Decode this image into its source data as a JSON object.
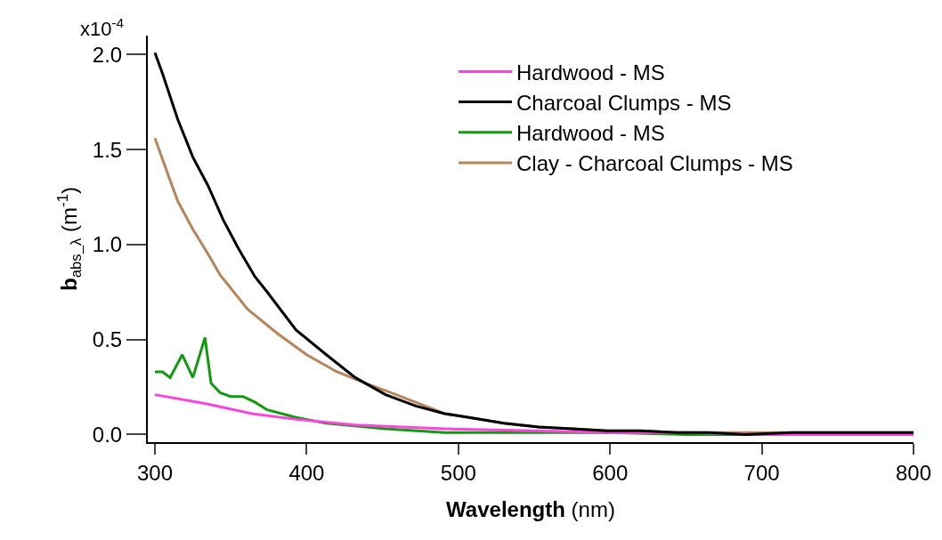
{
  "chart_data": {
    "type": "line",
    "xlabel": "Wavelength (nm)",
    "ylabel": "b$_{abs_λ}$ (m$^{-1}$)",
    "annotations": [
      "x10$^{-4}$"
    ],
    "xlim": [
      295.3,
      800
    ],
    "xticks": [
      300,
      400,
      500,
      600,
      700,
      800
    ],
    "ylim": [
      -0.04,
      2.1
    ],
    "yticks": [
      {
        "value": 0,
        "label": "0.0"
      },
      0.5,
      {
        "value": 1,
        "label": "1.0"
      },
      1.5,
      {
        "value": 2,
        "label": "2.0"
      }
    ],
    "grid": false,
    "legend": "top right",
    "marker": "none",
    "line_style": "solid",
    "series": [
      {
        "name": "Hardwood - MS",
        "color": "#ff44dd",
        "x": [
          300,
          335,
          364,
          393,
          432,
          491,
          550,
          600,
          650,
          700,
          750,
          800
        ],
        "values": [
          0.21,
          0.16,
          0.11,
          0.08,
          0.05,
          0.03,
          0.02,
          0.01,
          0.01,
          0.0,
          0.0,
          0.0
        ]
      },
      {
        "name": "Charcoal Clumps - MS",
        "color": "#000000",
        "x": [
          300,
          305,
          315,
          325,
          335,
          345,
          355,
          366,
          374,
          393,
          413,
          432,
          452,
          472,
          491,
          507,
          530,
          553,
          575,
          598,
          620,
          644,
          665,
          689,
          720,
          760,
          800
        ],
        "values": [
          2.01,
          1.9,
          1.66,
          1.46,
          1.31,
          1.13,
          0.98,
          0.83,
          0.75,
          0.55,
          0.42,
          0.3,
          0.21,
          0.15,
          0.11,
          0.09,
          0.06,
          0.04,
          0.03,
          0.02,
          0.02,
          0.01,
          0.01,
          0.0,
          0.01,
          0.01,
          0.01
        ]
      },
      {
        "name": "Hardwood - MS",
        "color": "#119911",
        "x": [
          300,
          305,
          310,
          318,
          325,
          333,
          337,
          343,
          350,
          358,
          366,
          374,
          393,
          413,
          452,
          491,
          550,
          600,
          650,
          700
        ],
        "values": [
          0.33,
          0.33,
          0.3,
          0.42,
          0.3,
          0.51,
          0.27,
          0.22,
          0.2,
          0.2,
          0.17,
          0.13,
          0.09,
          0.06,
          0.03,
          0.01,
          0.01,
          0.01,
          0.0,
          0.0
        ]
      },
      {
        "name": "Clay - Charcoal Clumps - MS",
        "color": "#b8855a",
        "x": [
          300,
          309,
          315,
          325,
          335,
          343,
          352,
          361,
          381,
          400,
          420,
          439,
          459,
          491,
          507,
          530,
          553,
          575,
          598,
          620,
          644,
          665,
          689,
          720,
          760,
          800
        ],
        "values": [
          1.56,
          1.36,
          1.23,
          1.08,
          0.95,
          0.84,
          0.75,
          0.66,
          0.53,
          0.42,
          0.33,
          0.27,
          0.21,
          0.11,
          0.09,
          0.06,
          0.04,
          0.03,
          0.02,
          0.02,
          0.01,
          0.01,
          0.01,
          0.01,
          0.01,
          0.01
        ]
      }
    ]
  }
}
